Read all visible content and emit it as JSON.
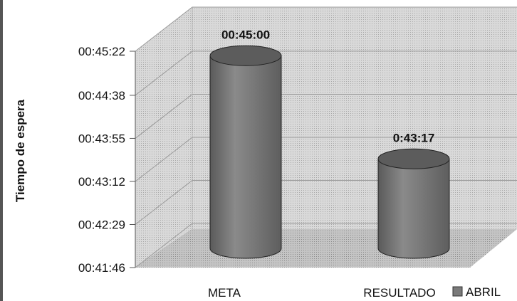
{
  "chart_data": {
    "type": "bar",
    "title": "",
    "ylabel": "Tiempo de espera",
    "xlabel": "",
    "categories": [
      "META",
      "RESULTADO"
    ],
    "series": [
      {
        "name": "ABRIL",
        "values": [
          "00:45:00",
          "00:43:17"
        ],
        "values_seconds": [
          2700,
          2597
        ],
        "data_labels": [
          "00:45:00",
          "0:43:17"
        ]
      }
    ],
    "y_ticks": [
      "00:41:46",
      "00:42:29",
      "00:43:12",
      "00:43:55",
      "00:44:38",
      "00:45:22"
    ],
    "y_ticks_seconds": [
      2506,
      2549,
      2592,
      2635,
      2678,
      2722
    ],
    "ylim_seconds": [
      2506,
      2722
    ],
    "grid": true,
    "legend_position": "bottom-right",
    "style": "3d-cylinder",
    "colors": {
      "bar": "#7a7a7a",
      "bar_top": "#5c5c5c",
      "wall": "#cfcfcf",
      "floor": "#b8b8b8"
    }
  }
}
